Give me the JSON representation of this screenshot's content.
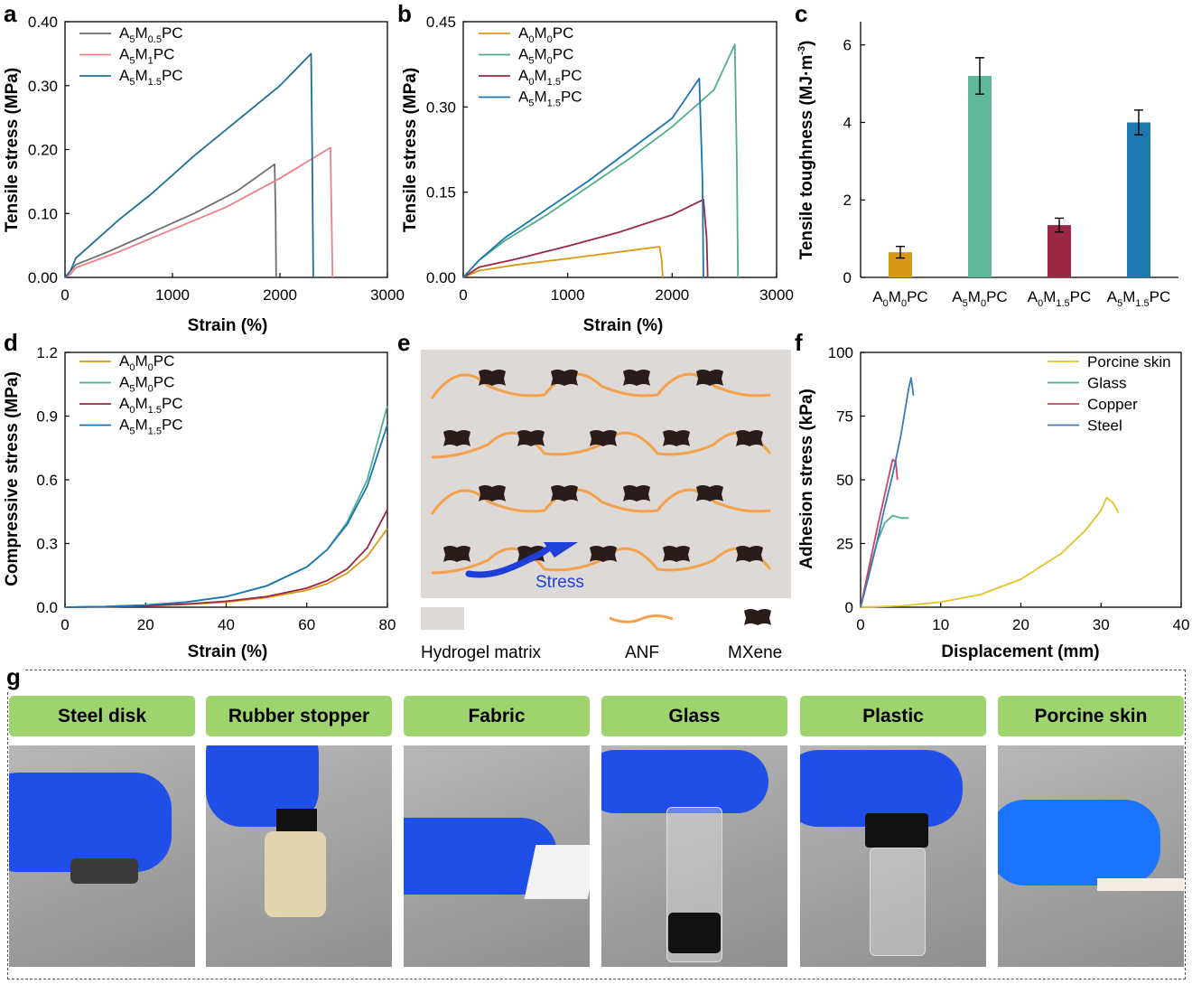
{
  "panels": {
    "a": {
      "letter": "a",
      "xlabel": "Strain (%)",
      "ylabel": "Tensile stress (MPa)",
      "xticks": [
        "0",
        "1000",
        "2000",
        "3000"
      ],
      "yticks": [
        "0.00",
        "0.10",
        "0.20",
        "0.30",
        "0.40"
      ],
      "legend": [
        {
          "base": "A",
          "s1": "5",
          "mid": "M",
          "s2": "0.5",
          "tail": "PC",
          "color": "#6e6e6e"
        },
        {
          "base": "A",
          "s1": "5",
          "mid": "M",
          "s2": "1",
          "tail": "PC",
          "color": "#f07f86"
        },
        {
          "base": "A",
          "s1": "5",
          "mid": "M",
          "s2": "1.5",
          "tail": "PC",
          "color": "#1d6e98"
        }
      ]
    },
    "b": {
      "letter": "b",
      "xlabel": "Strain (%)",
      "ylabel": "Tensile stress (MPa)",
      "xticks": [
        "0",
        "1000",
        "2000",
        "3000"
      ],
      "yticks": [
        "0.00",
        "0.15",
        "0.30",
        "0.45"
      ],
      "legend": [
        {
          "base": "A",
          "s1": "0",
          "mid": "M",
          "s2": "0",
          "tail": "PC",
          "color": "#d79a17"
        },
        {
          "base": "A",
          "s1": "5",
          "mid": "M",
          "s2": "0",
          "tail": "PC",
          "color": "#4fae8f"
        },
        {
          "base": "A",
          "s1": "0",
          "mid": "M",
          "s2": "1.5",
          "tail": "PC",
          "color": "#9b2743"
        },
        {
          "base": "A",
          "s1": "5",
          "mid": "M",
          "s2": "1.5",
          "tail": "PC",
          "color": "#1b74b4"
        }
      ]
    },
    "c": {
      "letter": "c",
      "ylabel": "Tensile toughness (MJ·m",
      "ylabel_sup": "-3",
      "ylabel_end": ")",
      "yticks": [
        "0",
        "2",
        "4",
        "6"
      ],
      "xcats": [
        {
          "base": "A",
          "s1": "0",
          "mid": "M",
          "s2": "0",
          "tail": "PC"
        },
        {
          "base": "A",
          "s1": "5",
          "mid": "M",
          "s2": "0",
          "tail": "PC"
        },
        {
          "base": "A",
          "s1": "0",
          "mid": "M",
          "s2": "1.5",
          "tail": "PC"
        },
        {
          "base": "A",
          "s1": "5",
          "mid": "M",
          "s2": "1.5",
          "tail": "PC"
        }
      ]
    },
    "d": {
      "letter": "d",
      "xlabel": "Strain (%)",
      "ylabel": "Compressive stress (MPa)",
      "xticks": [
        "0",
        "20",
        "40",
        "60",
        "80"
      ],
      "yticks": [
        "0.0",
        "0.3",
        "0.6",
        "0.9",
        "1.2"
      ],
      "legend": [
        {
          "base": "A",
          "s1": "0",
          "mid": "M",
          "s2": "0",
          "tail": "PC",
          "color": "#d79a17"
        },
        {
          "base": "A",
          "s1": "5",
          "mid": "M",
          "s2": "0",
          "tail": "PC",
          "color": "#4fae8f"
        },
        {
          "base": "A",
          "s1": "0",
          "mid": "M",
          "s2": "1.5",
          "tail": "PC",
          "color": "#9b2743"
        },
        {
          "base": "A",
          "s1": "5",
          "mid": "M",
          "s2": "1.5",
          "tail": "PC",
          "color": "#1b74b4"
        }
      ]
    },
    "e": {
      "letter": "e",
      "stress_label": "Stress",
      "legend_matrix": "Hydrogel matrix",
      "legend_anf": "ANF",
      "legend_mxene": "MXene",
      "matrix_color": "#ddd9d7",
      "anf_color": "#f5a04a",
      "mxene_color": "#2a1c1a",
      "arrow_color": "#1f3fd9"
    },
    "f": {
      "letter": "f",
      "xlabel": "Displacement (mm)",
      "ylabel": "Adhesion stress (kPa)",
      "xticks": [
        "0",
        "10",
        "20",
        "30",
        "40"
      ],
      "yticks": [
        "0",
        "25",
        "50",
        "75",
        "100"
      ],
      "legend": [
        {
          "text": "Porcine skin",
          "color": "#e6c229"
        },
        {
          "text": "Glass",
          "color": "#4fae8f"
        },
        {
          "text": "Copper",
          "color": "#c8465f"
        },
        {
          "text": "Steel",
          "color": "#3a7ab8"
        }
      ]
    },
    "g": {
      "letter": "g",
      "cards": [
        "Steel disk",
        "Rubber stopper",
        "Fabric",
        "Glass",
        "Plastic",
        "Porcine skin"
      ]
    }
  },
  "chart_data": [
    {
      "panel": "a",
      "type": "line",
      "xlabel": "Strain (%)",
      "ylabel": "Tensile stress (MPa)",
      "xlim": [
        0,
        3000
      ],
      "ylim": [
        0,
        0.4
      ],
      "series": [
        {
          "name": "A5M0.5PC",
          "color": "#6e6e6e",
          "x": [
            0,
            50,
            100,
            400,
            800,
            1200,
            1600,
            1950,
            1960,
            1965
          ],
          "y": [
            0,
            0.01,
            0.02,
            0.04,
            0.07,
            0.1,
            0.135,
            0.177,
            0.1,
            0
          ]
        },
        {
          "name": "A5M1PC",
          "color": "#f07f86",
          "x": [
            0,
            50,
            100,
            500,
            1000,
            1500,
            2000,
            2470,
            2480,
            2490
          ],
          "y": [
            0,
            0.005,
            0.015,
            0.04,
            0.075,
            0.11,
            0.155,
            0.203,
            0.1,
            0
          ]
        },
        {
          "name": "A5M1.5PC",
          "color": "#1d6e98",
          "x": [
            0,
            50,
            100,
            300,
            500,
            800,
            1200,
            1600,
            2000,
            2290,
            2300,
            2310
          ],
          "y": [
            0,
            0.01,
            0.03,
            0.06,
            0.09,
            0.13,
            0.19,
            0.245,
            0.3,
            0.35,
            0.2,
            0
          ]
        }
      ]
    },
    {
      "panel": "b",
      "type": "line",
      "xlabel": "Strain (%)",
      "ylabel": "Tensile stress (MPa)",
      "xlim": [
        0,
        3000
      ],
      "ylim": [
        0,
        0.45
      ],
      "series": [
        {
          "name": "A0M0PC",
          "color": "#d79a17",
          "x": [
            0,
            50,
            150,
            500,
            1000,
            1500,
            1880,
            1900,
            1910
          ],
          "y": [
            0,
            0.004,
            0.012,
            0.022,
            0.033,
            0.045,
            0.054,
            0.03,
            0
          ]
        },
        {
          "name": "A5M0PC",
          "color": "#4fae8f",
          "x": [
            0,
            50,
            150,
            400,
            800,
            1200,
            1600,
            2000,
            2400,
            2600,
            2620,
            2630
          ],
          "y": [
            0,
            0.01,
            0.03,
            0.065,
            0.11,
            0.16,
            0.21,
            0.265,
            0.33,
            0.41,
            0.2,
            0
          ]
        },
        {
          "name": "A0M1.5PC",
          "color": "#9b2743",
          "x": [
            0,
            50,
            150,
            500,
            1000,
            1500,
            2000,
            2300,
            2330,
            2340
          ],
          "y": [
            0,
            0.006,
            0.018,
            0.032,
            0.055,
            0.08,
            0.11,
            0.137,
            0.07,
            0
          ]
        },
        {
          "name": "A5M1.5PC",
          "color": "#1b74b4",
          "x": [
            0,
            50,
            150,
            400,
            800,
            1200,
            1600,
            2000,
            2260,
            2290,
            2300
          ],
          "y": [
            0,
            0.01,
            0.03,
            0.07,
            0.12,
            0.17,
            0.225,
            0.28,
            0.35,
            0.17,
            0
          ]
        }
      ]
    },
    {
      "panel": "c",
      "type": "bar",
      "ylabel": "Tensile toughness (MJ·m-3)",
      "categories": [
        "A0M0PC",
        "A5M0PC",
        "A0M1.5PC",
        "A5M1.5PC"
      ],
      "values": [
        0.65,
        5.2,
        1.35,
        4.0
      ],
      "errors": [
        0.15,
        0.47,
        0.18,
        0.32
      ],
      "colors": [
        "#d79a17",
        "#5fb89a",
        "#9b2743",
        "#1d78b0"
      ],
      "ylim": [
        0,
        6.6
      ]
    },
    {
      "panel": "d",
      "type": "line",
      "xlabel": "Strain (%)",
      "ylabel": "Compressive stress (MPa)",
      "xlim": [
        0,
        80
      ],
      "ylim": [
        0,
        1.2
      ],
      "series": [
        {
          "name": "A0M0PC",
          "color": "#d79a17",
          "x": [
            0,
            10,
            20,
            30,
            40,
            50,
            60,
            65,
            70,
            75,
            80
          ],
          "y": [
            0,
            0.002,
            0.006,
            0.013,
            0.024,
            0.045,
            0.08,
            0.11,
            0.16,
            0.24,
            0.37
          ]
        },
        {
          "name": "A5M0PC",
          "color": "#4fae8f",
          "x": [
            0,
            10,
            20,
            30,
            40,
            50,
            60,
            65,
            70,
            75,
            80
          ],
          "y": [
            0,
            0.003,
            0.01,
            0.024,
            0.05,
            0.1,
            0.19,
            0.27,
            0.4,
            0.6,
            0.95
          ]
        },
        {
          "name": "A0M1.5PC",
          "color": "#9b2743",
          "x": [
            0,
            10,
            20,
            30,
            40,
            50,
            60,
            65,
            70,
            75,
            80
          ],
          "y": [
            0,
            0.002,
            0.007,
            0.015,
            0.028,
            0.05,
            0.09,
            0.125,
            0.18,
            0.28,
            0.46
          ]
        },
        {
          "name": "A5M1.5PC",
          "color": "#1b74b4",
          "x": [
            0,
            10,
            20,
            30,
            40,
            50,
            60,
            65,
            70,
            75,
            80
          ],
          "y": [
            0,
            0.003,
            0.01,
            0.024,
            0.05,
            0.1,
            0.19,
            0.27,
            0.39,
            0.57,
            0.86
          ]
        }
      ]
    },
    {
      "panel": "f",
      "type": "line",
      "xlabel": "Displacement (mm)",
      "ylabel": "Adhesion stress (kPa)",
      "xlim": [
        0,
        40
      ],
      "ylim": [
        0,
        100
      ],
      "series": [
        {
          "name": "Porcine skin",
          "color": "#e6c229",
          "x": [
            0,
            5,
            10,
            15,
            20,
            25,
            28,
            30,
            30.7,
            31.5,
            32.2
          ],
          "y": [
            0,
            0.5,
            2,
            5,
            11,
            21,
            30,
            38,
            43,
            41,
            37
          ]
        },
        {
          "name": "Glass",
          "color": "#4fae8f",
          "x": [
            0,
            1,
            2,
            3,
            4,
            5,
            6
          ],
          "y": [
            0,
            13,
            25,
            33,
            36,
            35,
            35
          ]
        },
        {
          "name": "Copper",
          "color": "#c8465f",
          "x": [
            0,
            1,
            2,
            3,
            4,
            4.4,
            4.6
          ],
          "y": [
            0,
            15,
            30,
            44,
            58,
            57,
            50
          ]
        },
        {
          "name": "Steel",
          "color": "#3a7ab8",
          "x": [
            0,
            1,
            2,
            3,
            4,
            5,
            6,
            6.3,
            6.6
          ],
          "y": [
            0,
            12,
            25,
            39,
            52,
            67,
            86,
            90,
            83
          ]
        }
      ]
    }
  ]
}
